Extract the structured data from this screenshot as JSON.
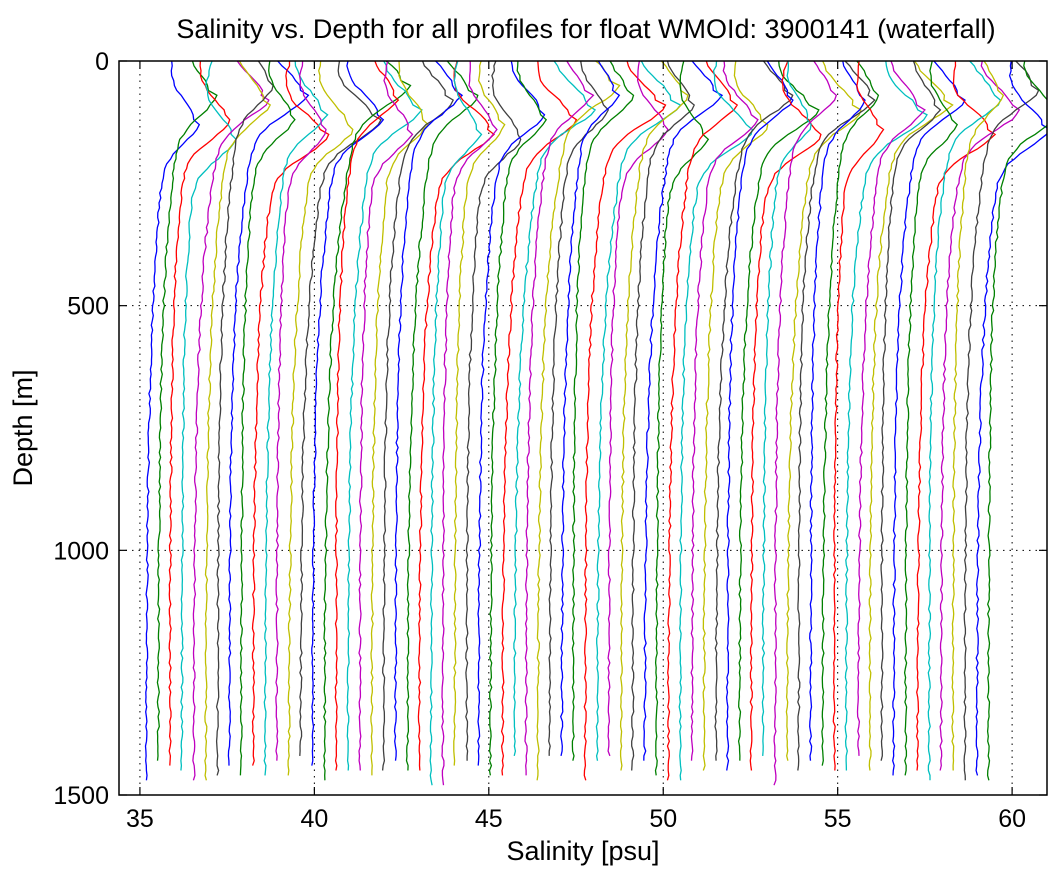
{
  "chart_data": {
    "type": "line",
    "title": "Salinity vs. Depth for all profiles for float WMOId: 3900141 (waterfall)",
    "xlabel": "Salinity [psu]",
    "ylabel": "Depth [m]",
    "xlim": [
      34.4,
      61
    ],
    "ylim": [
      0,
      1500
    ],
    "y_reversed": true,
    "grid": true,
    "x_ticks": [
      35,
      40,
      45,
      50,
      55,
      60
    ],
    "y_ticks": [
      0,
      500,
      1000,
      1500
    ],
    "legend": "none",
    "series_colors": [
      "#0000ff",
      "#008000",
      "#ff0000",
      "#00bfbf",
      "#bf00bf",
      "#bfbf00",
      "#404040"
    ],
    "waterfall": {
      "profile_count": 72,
      "first_offset_psu": 0.0,
      "offset_step_psu": 0.34,
      "deep_base_salinity_psu": 35.03,
      "depth_range_m": [
        0,
        1480
      ]
    }
  }
}
